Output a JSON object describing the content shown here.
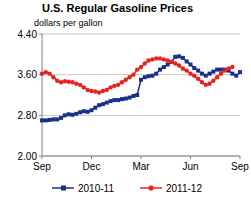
{
  "chart_data": {
    "type": "line",
    "title": "U.S. Regular Gasoline Prices",
    "subtitle": "dollars per gallon",
    "categories": [
      "Sep",
      null,
      null,
      null,
      null,
      null,
      null,
      null,
      null,
      null,
      null,
      null,
      null,
      "Dec",
      null,
      null,
      null,
      null,
      null,
      null,
      null,
      null,
      null,
      null,
      null,
      null,
      "Mar",
      null,
      null,
      null,
      null,
      null,
      null,
      null,
      null,
      null,
      null,
      null,
      null,
      "Jun",
      null,
      null,
      null,
      null,
      null,
      null,
      null,
      null,
      null,
      null,
      null,
      null,
      "Sep"
    ],
    "series": [
      {
        "name": "2010-11",
        "color": "#1a2f8a",
        "marker": "square",
        "values": [
          2.7,
          2.7,
          2.71,
          2.72,
          2.72,
          2.75,
          2.8,
          2.82,
          2.81,
          2.83,
          2.86,
          2.88,
          2.87,
          2.9,
          2.95,
          3.0,
          3.02,
          3.05,
          3.08,
          3.1,
          3.1,
          3.12,
          3.13,
          3.15,
          3.18,
          3.2,
          3.5,
          3.55,
          3.57,
          3.58,
          3.62,
          3.7,
          3.75,
          3.8,
          3.85,
          3.95,
          3.96,
          3.93,
          3.86,
          3.8,
          3.73,
          3.68,
          3.62,
          3.58,
          3.62,
          3.66,
          3.7,
          3.7,
          3.7,
          3.68,
          3.62,
          3.58,
          3.65
        ]
      },
      {
        "name": "2011-12",
        "color": "#e8231e",
        "marker": "circle",
        "values": [
          3.62,
          3.65,
          3.62,
          3.55,
          3.48,
          3.45,
          3.47,
          3.46,
          3.45,
          3.42,
          3.4,
          3.35,
          3.3,
          3.28,
          3.27,
          3.25,
          3.28,
          3.3,
          3.35,
          3.38,
          3.4,
          3.45,
          3.5,
          3.55,
          3.6,
          3.7,
          3.75,
          3.82,
          3.88,
          3.9,
          3.92,
          3.92,
          3.9,
          3.88,
          3.85,
          3.82,
          3.78,
          3.72,
          3.68,
          3.62,
          3.58,
          3.52,
          3.45,
          3.4,
          3.42,
          3.48,
          3.55,
          3.62,
          3.68,
          3.72,
          3.75,
          null,
          null
        ]
      }
    ],
    "ylim": [
      2.0,
      4.4
    ],
    "yticks": [
      {
        "value": 2.0,
        "label": "2.00"
      },
      {
        "value": 2.8,
        "label": "2.80"
      },
      {
        "value": 3.6,
        "label": "3.60"
      },
      {
        "value": 4.4,
        "label": "4.40"
      }
    ],
    "grid": true,
    "legend": "bottom"
  }
}
